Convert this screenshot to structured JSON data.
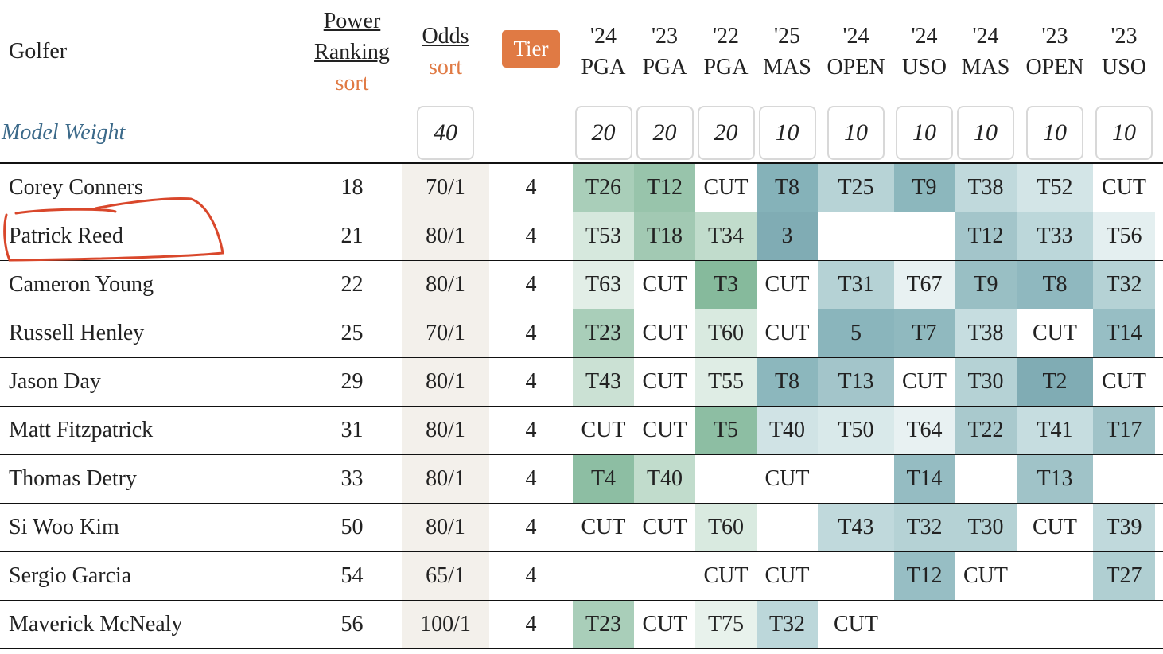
{
  "header": {
    "golfer": "Golfer",
    "power_ranking": "Power Ranking",
    "power_ranking_sort": "sort",
    "odds": "Odds",
    "odds_sort": "sort",
    "tier": "Tier",
    "tournaments": [
      {
        "year": "'24",
        "event": "PGA"
      },
      {
        "year": "'23",
        "event": "PGA"
      },
      {
        "year": "'22",
        "event": "PGA"
      },
      {
        "year": "'25",
        "event": "MAS"
      },
      {
        "year": "'24",
        "event": "OPEN"
      },
      {
        "year": "'24",
        "event": "USO"
      },
      {
        "year": "'24",
        "event": "MAS"
      },
      {
        "year": "'23",
        "event": "OPEN"
      },
      {
        "year": "'23",
        "event": "USO"
      }
    ]
  },
  "model_weight": {
    "label": "Model Weight",
    "odds": 40,
    "tournaments": [
      20,
      20,
      20,
      10,
      10,
      10,
      10,
      10,
      10
    ]
  },
  "rows": [
    {
      "golfer": "Corey Conners",
      "power_ranking": 18,
      "odds": "70/1",
      "tier": 4,
      "results": [
        "T26",
        "T12",
        "CUT",
        "T8",
        "T25",
        "T9",
        "T38",
        "T52",
        "CUT"
      ],
      "result_colors": [
        "#a9ceb9",
        "#98c4ab",
        null,
        "#85b2b9",
        "#b7d3d6",
        "#8cb7bd",
        "#c0d9dc",
        "#d3e5e7",
        null
      ]
    },
    {
      "golfer": "Patrick Reed",
      "power_ranking": 21,
      "odds": "80/1",
      "tier": 4,
      "results": [
        "T53",
        "T18",
        "T34",
        "3",
        null,
        null,
        "T12",
        "T33",
        "T56"
      ],
      "result_colors": [
        "#d6e8dd",
        "#a2c9b3",
        "#c1dccc",
        "#80acb4",
        null,
        null,
        "#a3c5ca",
        "#bcd7da",
        "#e4eff0"
      ]
    },
    {
      "golfer": "Cameron Young",
      "power_ranking": 22,
      "odds": "80/1",
      "tier": 4,
      "results": [
        "T63",
        "CUT",
        "T3",
        "CUT",
        "T31",
        "T67",
        "T9",
        "T8",
        "T32"
      ],
      "result_colors": [
        "#e2eee7",
        null,
        "#86ba9c",
        null,
        "#b5d2d5",
        "#e8f1f2",
        "#99bfc4",
        "#8fb8bf",
        "#b5d2d5"
      ]
    },
    {
      "golfer": "Russell Henley",
      "power_ranking": 25,
      "odds": "70/1",
      "tier": 4,
      "results": [
        "T23",
        "CUT",
        "T60",
        "CUT",
        "5",
        "T7",
        "T38",
        "CUT",
        "T14"
      ],
      "result_colors": [
        "#a9ceb9",
        null,
        "#d9eae0",
        null,
        "#8ab5bc",
        "#90b9bf",
        "#c6dde0",
        null,
        "#97bec4"
      ]
    },
    {
      "golfer": "Jason Day",
      "power_ranking": 29,
      "odds": "80/1",
      "tier": 4,
      "results": [
        "T43",
        "CUT",
        "T55",
        "T8",
        "T13",
        "CUT",
        "T30",
        "T2",
        "CUT"
      ],
      "result_colors": [
        "#cbe1d4",
        null,
        "#dfede5",
        "#8cb7bd",
        "#a3c5ca",
        null,
        "#b5d2d5",
        "#80acb4",
        null
      ]
    },
    {
      "golfer": "Matt Fitzpatrick",
      "power_ranking": 31,
      "odds": "80/1",
      "tier": 4,
      "results": [
        "CUT",
        "CUT",
        "T5",
        "T40",
        "T50",
        "T64",
        "T22",
        "T41",
        "T17"
      ],
      "result_colors": [
        null,
        null,
        "#8dbea3",
        "#d0e3e5",
        "#d9e9ea",
        "#e8f1f2",
        "#a9c9cd",
        "#c6dde0",
        "#a0c3c8"
      ]
    },
    {
      "golfer": "Thomas Detry",
      "power_ranking": 33,
      "odds": "80/1",
      "tier": 4,
      "results": [
        "T4",
        "T40",
        null,
        "CUT",
        null,
        "T14",
        null,
        "T13",
        null
      ],
      "result_colors": [
        "#8dbea3",
        "#c1dccc",
        null,
        null,
        null,
        "#95bcc2",
        null,
        "#a0c3c8",
        null
      ]
    },
    {
      "golfer": "Si Woo Kim",
      "power_ranking": 50,
      "odds": "80/1",
      "tier": 4,
      "results": [
        "CUT",
        "CUT",
        "T60",
        null,
        "T43",
        "T32",
        "T30",
        "CUT",
        "T39"
      ],
      "result_colors": [
        null,
        null,
        "#d9eae0",
        null,
        "#c0d9dc",
        "#b5d2d5",
        "#b5d2d5",
        null,
        "#c0d9dc"
      ]
    },
    {
      "golfer": "Sergio Garcia",
      "power_ranking": 54,
      "odds": "65/1",
      "tier": 4,
      "results": [
        null,
        null,
        "CUT",
        "CUT",
        null,
        "T12",
        "CUT",
        null,
        "T27"
      ],
      "result_colors": [
        null,
        null,
        null,
        null,
        null,
        "#97bec4",
        null,
        null,
        "#b0cfd2"
      ]
    },
    {
      "golfer": "Maverick McNealy",
      "power_ranking": 56,
      "odds": "100/1",
      "tier": 4,
      "results": [
        "T23",
        "CUT",
        "T75",
        "T32",
        "CUT",
        null,
        null,
        null,
        null
      ],
      "result_colors": [
        "#a9ceb9",
        null,
        "#e8f2ec",
        "#bcd7da",
        null,
        null,
        null,
        null,
        null
      ]
    }
  ]
}
